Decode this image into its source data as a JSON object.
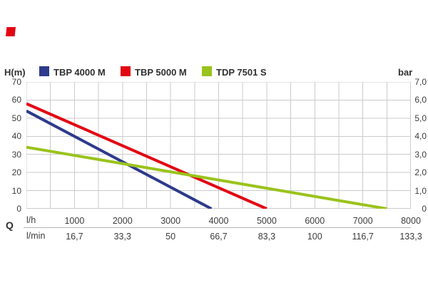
{
  "brand": {
    "mark_color": "#e30613"
  },
  "legend": {
    "left_unit": "H(m)",
    "right_unit": "bar"
  },
  "chart_data": {
    "type": "line",
    "title": "",
    "grid": true,
    "grid_color": "#cbcbcb",
    "legend_position": "top",
    "x_axis": {
      "quantity_label": "Q",
      "min": 0,
      "max": 8000,
      "tick_step": 1000,
      "grid_step": 500,
      "unit_rows": [
        {
          "label": "l/h",
          "ticks": [
            "1000",
            "2000",
            "3000",
            "4000",
            "5000",
            "6000",
            "7000",
            "8000"
          ]
        },
        {
          "label": "l/min",
          "ticks": [
            "16,7",
            "33,3",
            "50",
            "66,7",
            "83,3",
            "100",
            "116,7",
            "133,3"
          ]
        }
      ]
    },
    "y_axis_left": {
      "label": "H(m)",
      "min": 0,
      "max": 70,
      "grid_step": 10,
      "ticks": [
        "70",
        "60",
        "50",
        "40",
        "30",
        "20",
        "10",
        "0"
      ]
    },
    "y_axis_right": {
      "label": "bar",
      "min": 0,
      "max": 7,
      "ticks": [
        "7,0",
        "6,0",
        "5,0",
        "4,0",
        "3,0",
        "2,0",
        "1,0",
        "0"
      ]
    },
    "series": [
      {
        "name": "TBP 4000 M",
        "color": "#2e3a8c",
        "points_lh_m": [
          [
            0,
            54
          ],
          [
            3850,
            0
          ]
        ]
      },
      {
        "name": "TBP 5000 M",
        "color": "#e30613",
        "points_lh_m": [
          [
            0,
            58
          ],
          [
            5000,
            0
          ]
        ]
      },
      {
        "name": "TDP 7501 S",
        "color": "#9ac31c",
        "points_lh_m": [
          [
            0,
            34
          ],
          [
            7500,
            0
          ]
        ]
      }
    ]
  }
}
